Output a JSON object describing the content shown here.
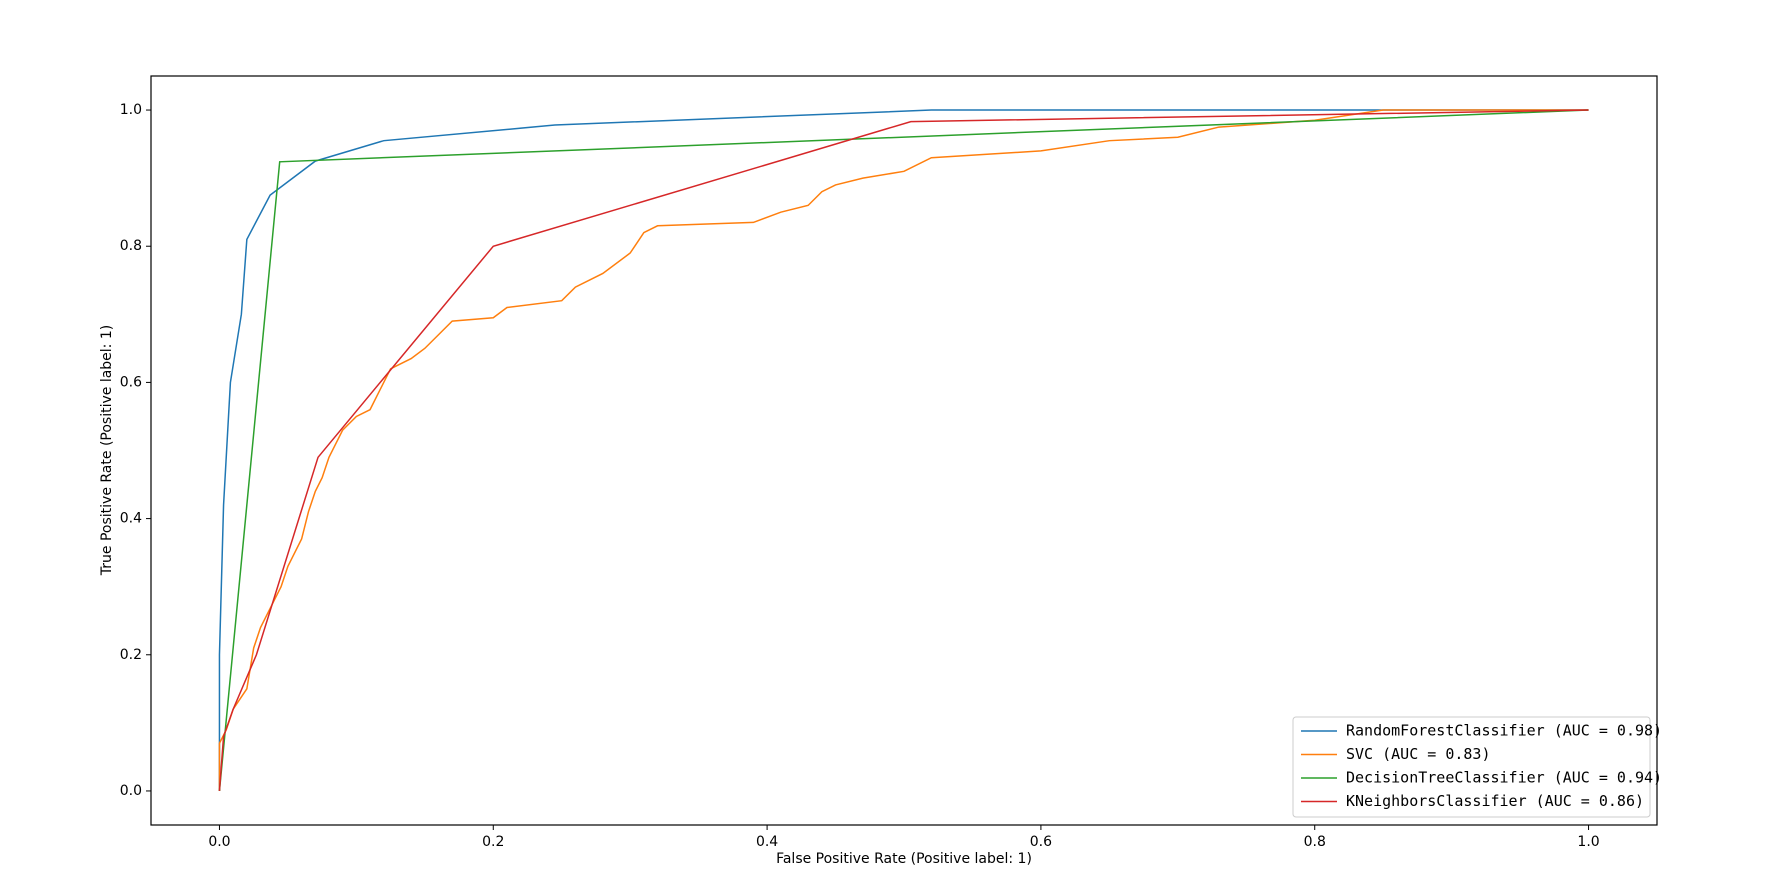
{
  "chart_data": {
    "type": "line",
    "xlabel": "False Positive Rate (Positive label: 1)",
    "ylabel": "True Positive Rate (Positive label: 1)",
    "xlim": [
      -0.05,
      1.05
    ],
    "ylim": [
      -0.05,
      1.05
    ],
    "xticks": [
      {
        "value": 0,
        "label": "0.0"
      },
      {
        "value": 0.2,
        "label": "0.2"
      },
      {
        "value": 0.4,
        "label": "0.4"
      },
      {
        "value": 0.6,
        "label": "0.6"
      },
      {
        "value": 0.8,
        "label": "0.8"
      },
      {
        "value": 1,
        "label": "1.0"
      }
    ],
    "yticks": [
      {
        "value": 0,
        "label": "0.0"
      },
      {
        "value": 0.2,
        "label": "0.2"
      },
      {
        "value": 0.4,
        "label": "0.4"
      },
      {
        "value": 0.6,
        "label": "0.6"
      },
      {
        "value": 0.8,
        "label": "0.8"
      },
      {
        "value": 1,
        "label": "1.0"
      }
    ],
    "legend": "lower right",
    "series": [
      {
        "name": "RandomForestClassifier (AUC = 0.98)",
        "color": "#1f77b4",
        "x": [
          0,
          0,
          0.003,
          0.008,
          0.016,
          0.02,
          0.037,
          0.07,
          0.12,
          0.245,
          0.52,
          1
        ],
        "values": [
          0,
          0.2,
          0.42,
          0.6,
          0.7,
          0.81,
          0.875,
          0.925,
          0.955,
          0.978,
          1,
          1
        ]
      },
      {
        "name": "SVC (AUC = 0.83)",
        "color": "#ff7f0e",
        "x": [
          0,
          0,
          0.005,
          0.01,
          0.02,
          0.025,
          0.03,
          0.04,
          0.045,
          0.05,
          0.06,
          0.065,
          0.07,
          0.075,
          0.08,
          0.09,
          0.1,
          0.11,
          0.12,
          0.125,
          0.14,
          0.15,
          0.16,
          0.17,
          0.2,
          0.21,
          0.25,
          0.26,
          0.28,
          0.3,
          0.31,
          0.32,
          0.39,
          0.41,
          0.43,
          0.44,
          0.45,
          0.47,
          0.5,
          0.52,
          0.6,
          0.65,
          0.7,
          0.73,
          0.8,
          0.85,
          1
        ],
        "values": [
          0,
          0.07,
          0.09,
          0.12,
          0.15,
          0.21,
          0.24,
          0.28,
          0.3,
          0.33,
          0.37,
          0.41,
          0.44,
          0.46,
          0.49,
          0.53,
          0.55,
          0.56,
          0.6,
          0.62,
          0.635,
          0.65,
          0.67,
          0.69,
          0.695,
          0.71,
          0.72,
          0.74,
          0.76,
          0.79,
          0.82,
          0.83,
          0.835,
          0.85,
          0.86,
          0.88,
          0.89,
          0.9,
          0.91,
          0.93,
          0.94,
          0.955,
          0.96,
          0.975,
          0.985,
          1,
          1
        ]
      },
      {
        "name": "DecisionTreeClassifier (AUC = 0.94)",
        "color": "#2ca02c",
        "x": [
          0,
          0.044,
          1
        ],
        "values": [
          0,
          0.924,
          1
        ]
      },
      {
        "name": "KNeighborsClassifier (AUC = 0.86)",
        "color": "#d62728",
        "x": [
          0,
          0.003,
          0.01,
          0.027,
          0.072,
          0.2,
          0.505,
          1
        ],
        "values": [
          0,
          0.08,
          0.12,
          0.2,
          0.49,
          0.8,
          0.983,
          1
        ]
      }
    ]
  }
}
